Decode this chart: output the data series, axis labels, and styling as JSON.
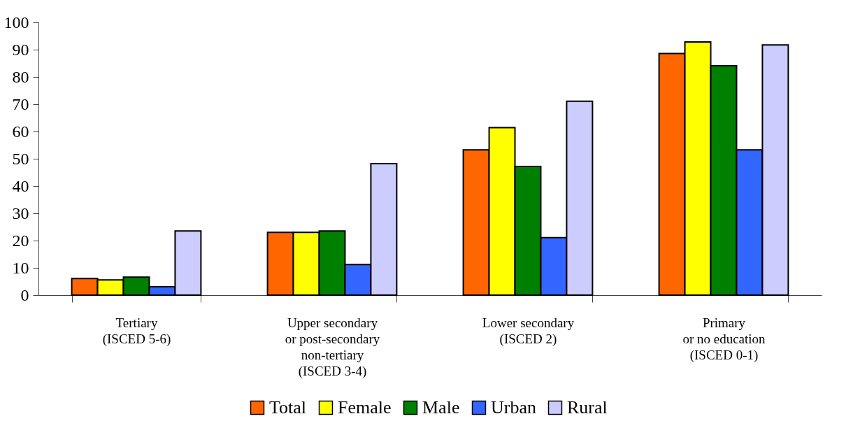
{
  "chart_data": {
    "type": "bar",
    "categories": [
      "Tertiary\n(ISCED 5-6)",
      "Upper secondary\nor post-secondary\nnon-tertiary\n(ISCED 3-4)",
      "Lower secondary\n(ISCED 2)",
      "Primary\nor no education\n(ISCED 0-1)"
    ],
    "series": [
      {
        "name": "Total",
        "color": "#ff6600",
        "values": [
          6.1,
          23.0,
          53.3,
          88.6
        ]
      },
      {
        "name": "Female",
        "color": "#ffff00",
        "values": [
          5.6,
          23.0,
          61.4,
          92.8
        ]
      },
      {
        "name": "Male",
        "color": "#008000",
        "values": [
          6.6,
          23.5,
          47.2,
          84.1
        ]
      },
      {
        "name": "Urban",
        "color": "#3366ff",
        "values": [
          3.1,
          11.2,
          21.1,
          53.3
        ]
      },
      {
        "name": "Rural",
        "color": "#ccccff",
        "values": [
          23.5,
          48.2,
          71.1,
          91.7
        ]
      }
    ],
    "ylim": [
      0,
      100
    ],
    "yticks": [
      0,
      10,
      20,
      30,
      40,
      50,
      60,
      70,
      80,
      90,
      100
    ],
    "grid": false,
    "legend": "bottom"
  }
}
